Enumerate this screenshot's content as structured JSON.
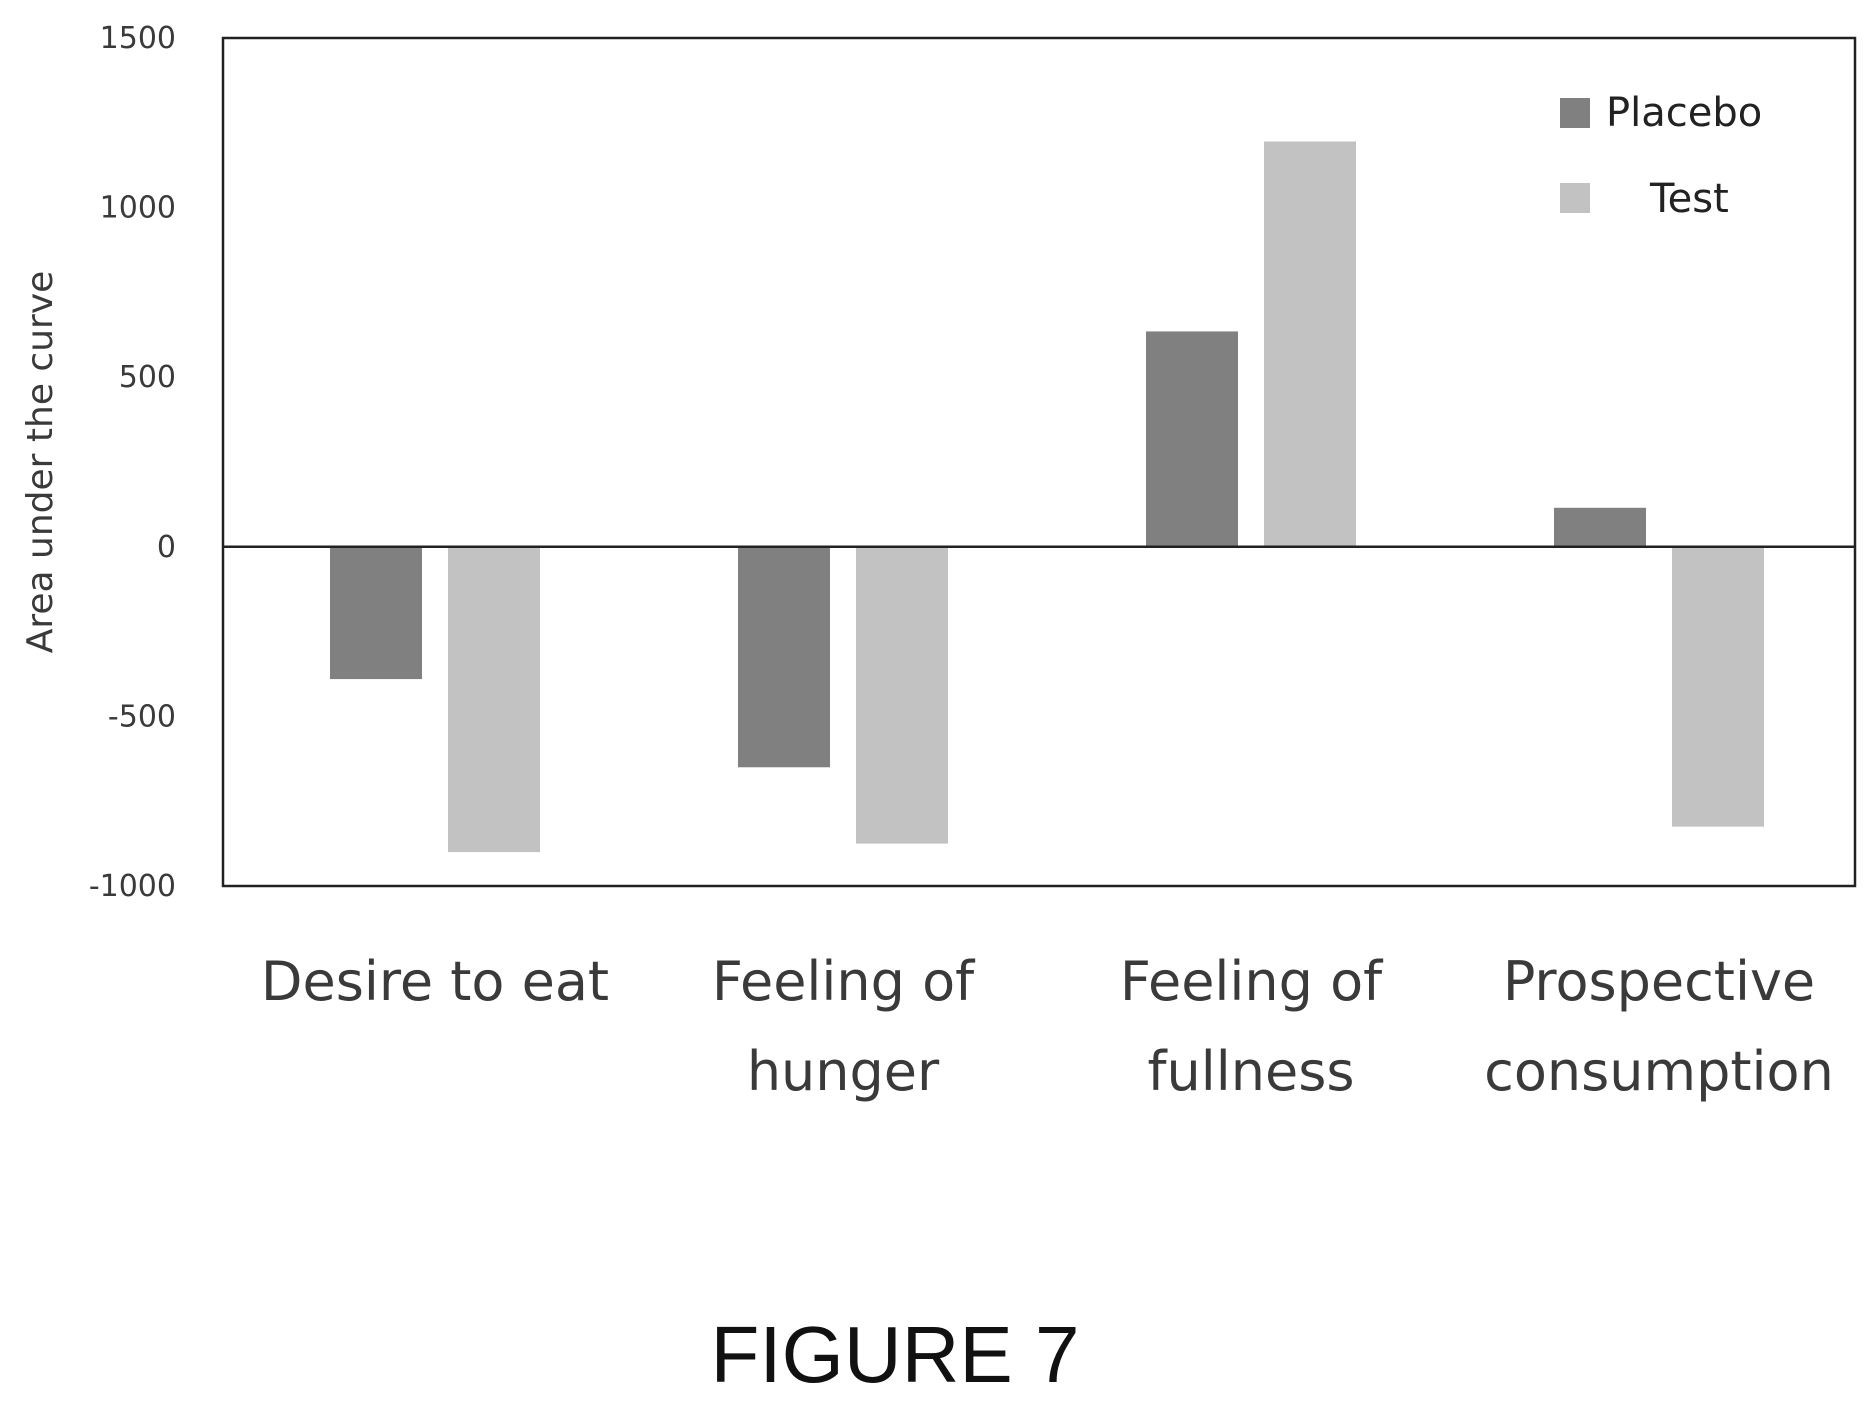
{
  "figure_caption": "FIGURE 7",
  "colors": {
    "placebo": "#808080",
    "test": "#c2c2c2",
    "axis": "#222222"
  },
  "chart_data": {
    "type": "bar",
    "categories": [
      [
        "Desire to eat"
      ],
      [
        "Feeling of",
        "hunger"
      ],
      [
        "Feeling of",
        "fullness"
      ],
      [
        "Prospective",
        "consumption"
      ]
    ],
    "series": [
      {
        "name": "Placebo",
        "values": [
          -390,
          -650,
          635,
          115
        ]
      },
      {
        "name": "Test",
        "values": [
          -900,
          -875,
          1195,
          -825
        ]
      }
    ],
    "xlabel": "",
    "ylabel": "Area under the curve",
    "ylim": [
      -1000,
      1500
    ],
    "yticks": [
      1500,
      1000,
      500,
      0,
      -500,
      -1000
    ],
    "grid": false,
    "legend_position": "top-right"
  }
}
